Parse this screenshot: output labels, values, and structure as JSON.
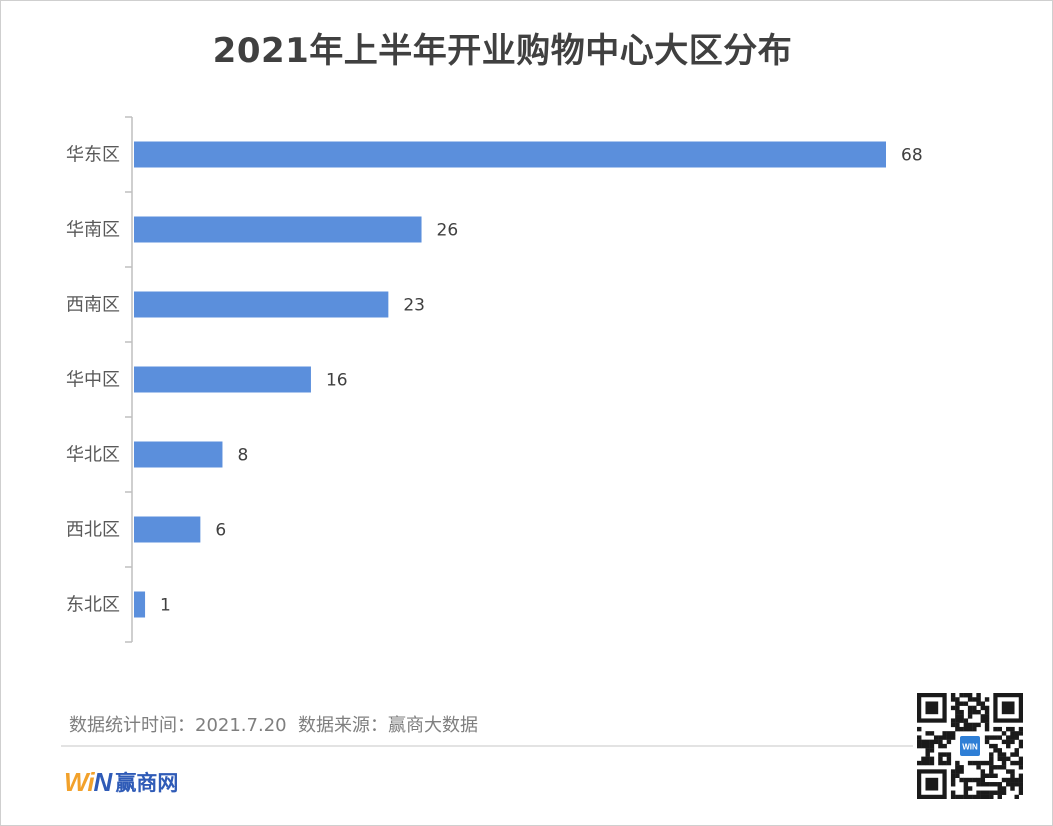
{
  "title": "2021年上半年开业购物中心大区分布",
  "chart_data": {
    "type": "bar",
    "orientation": "horizontal",
    "title": "2021年上半年开业购物中心大区分布",
    "categories": [
      "华东区",
      "华南区",
      "西南区",
      "华中区",
      "华北区",
      "西北区",
      "东北区"
    ],
    "values": [
      68,
      26,
      23,
      16,
      8,
      6,
      1
    ],
    "bar_color": "#5b8fdc",
    "xlim": [
      0,
      68
    ],
    "grid": false,
    "data_labels": true
  },
  "footer": {
    "note": "数据统计时间：2021.7.20  数据来源：赢商大数据",
    "brand_name": "赢商网",
    "logo": {
      "w": "W",
      "i": "i",
      "n": "N",
      "w_color": "#f2a12b",
      "n_color": "#2f5bb7"
    },
    "qr_icon": "qr-code-icon",
    "qr_badge": "WIN"
  }
}
